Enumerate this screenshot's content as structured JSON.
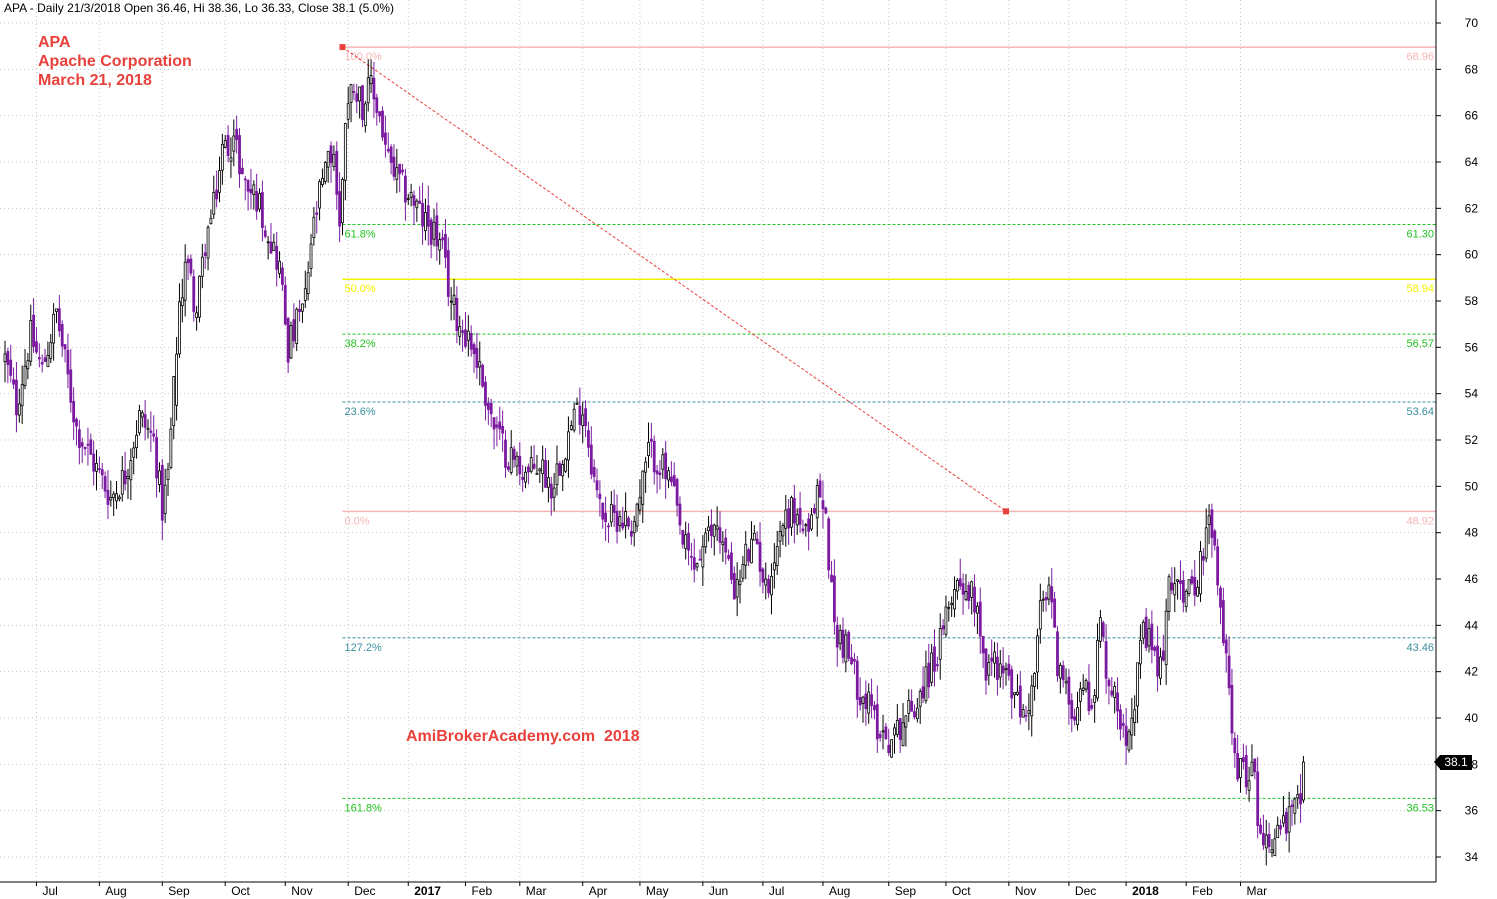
{
  "header": {
    "text": "APA - Daily 21/3/2018 Open 36.46, Hi 38.36, Lo 36.33, Close 38.1 (5.0%)"
  },
  "title_block": {
    "line1": "APA",
    "line2": "Apache Corporation",
    "line3": "March 21, 2018"
  },
  "watermark": "AmiBrokerAcademy.com  2018",
  "last_price_label": "38.1",
  "chart_data": {
    "type": "candlestick",
    "symbol": "APA",
    "interval": "Daily",
    "ylim": [
      33,
      71
    ],
    "y_ticks": [
      34,
      36,
      38,
      40,
      42,
      44,
      46,
      48,
      50,
      52,
      54,
      56,
      58,
      60,
      62,
      64,
      66,
      68,
      70
    ],
    "x_labels": [
      {
        "label": "Jul",
        "bar": 11,
        "bold": false
      },
      {
        "label": "Aug",
        "bar": 33,
        "bold": false
      },
      {
        "label": "Sep",
        "bar": 55,
        "bold": false
      },
      {
        "label": "Oct",
        "bar": 77,
        "bold": false
      },
      {
        "label": "Nov",
        "bar": 98,
        "bold": false
      },
      {
        "label": "Dec",
        "bar": 120,
        "bold": false
      },
      {
        "label": "2017",
        "bar": 141,
        "bold": true
      },
      {
        "label": "Feb",
        "bar": 161,
        "bold": false
      },
      {
        "label": "Mar",
        "bar": 180,
        "bold": false
      },
      {
        "label": "Apr",
        "bar": 202,
        "bold": false
      },
      {
        "label": "May",
        "bar": 222,
        "bold": false
      },
      {
        "label": "Jun",
        "bar": 244,
        "bold": false
      },
      {
        "label": "Jul",
        "bar": 265,
        "bold": false
      },
      {
        "label": "Aug",
        "bar": 286,
        "bold": false
      },
      {
        "label": "Sep",
        "bar": 309,
        "bold": false
      },
      {
        "label": "Oct",
        "bar": 329,
        "bold": false
      },
      {
        "label": "Nov",
        "bar": 351,
        "bold": false
      },
      {
        "label": "Dec",
        "bar": 372,
        "bold": false
      },
      {
        "label": "2018",
        "bar": 392,
        "bold": true
      },
      {
        "label": "Feb",
        "bar": 413,
        "bold": false
      },
      {
        "label": "Mar",
        "bar": 432,
        "bold": false
      }
    ],
    "price_path": [
      [
        0,
        55.5
      ],
      [
        4,
        53.5
      ],
      [
        9,
        56.5
      ],
      [
        13,
        55.0
      ],
      [
        18,
        57.5
      ],
      [
        25,
        52.5
      ],
      [
        31,
        51.0
      ],
      [
        37,
        49.5
      ],
      [
        42,
        50.5
      ],
      [
        47,
        53.0
      ],
      [
        52,
        52.0
      ],
      [
        55,
        49.0
      ],
      [
        57,
        50.5
      ],
      [
        60,
        56.0
      ],
      [
        63,
        60.0
      ],
      [
        67,
        57.5
      ],
      [
        70,
        60.5
      ],
      [
        73,
        62.0
      ],
      [
        76,
        64.5
      ],
      [
        80,
        65.0
      ],
      [
        84,
        63.0
      ],
      [
        88,
        62.5
      ],
      [
        92,
        61.0
      ],
      [
        96,
        59.5
      ],
      [
        99,
        56.0
      ],
      [
        102,
        57.0
      ],
      [
        105,
        58.0
      ],
      [
        107,
        60.5
      ],
      [
        110,
        62.5
      ],
      [
        113,
        64.0
      ],
      [
        115,
        64.5
      ],
      [
        117,
        61.0
      ],
      [
        119,
        66.0
      ],
      [
        122,
        67.5
      ],
      [
        125,
        66.5
      ],
      [
        128,
        67.2
      ],
      [
        131,
        66.0
      ],
      [
        134,
        64.0
      ],
      [
        138,
        63.0
      ],
      [
        142,
        62.5
      ],
      [
        146,
        61.5
      ],
      [
        150,
        61.0
      ],
      [
        153,
        60.0
      ],
      [
        156,
        58.0
      ],
      [
        159,
        57.0
      ],
      [
        162,
        56.5
      ],
      [
        165,
        55.5
      ],
      [
        168,
        54.0
      ],
      [
        171,
        52.5
      ],
      [
        175,
        51.5
      ],
      [
        179,
        51.0
      ],
      [
        183,
        50.5
      ],
      [
        187,
        51.0
      ],
      [
        191,
        50.0
      ],
      [
        195,
        51.5
      ],
      [
        199,
        53.0
      ],
      [
        202,
        53.5
      ],
      [
        204,
        52.0
      ],
      [
        207,
        49.5
      ],
      [
        211,
        48.5
      ],
      [
        215,
        48.8
      ],
      [
        219,
        48.3
      ],
      [
        222,
        49.5
      ],
      [
        225,
        51.5
      ],
      [
        229,
        51.0
      ],
      [
        233,
        50.0
      ],
      [
        237,
        47.5
      ],
      [
        241,
        46.5
      ],
      [
        245,
        47.5
      ],
      [
        249,
        48.5
      ],
      [
        253,
        46.5
      ],
      [
        256,
        45.5
      ],
      [
        259,
        47.0
      ],
      [
        263,
        47.5
      ],
      [
        266,
        45.5
      ],
      [
        269,
        47.0
      ],
      [
        272,
        48.5
      ],
      [
        275,
        49.0
      ],
      [
        278,
        48.5
      ],
      [
        281,
        47.5
      ],
      [
        284,
        50.0
      ],
      [
        287,
        48.5
      ],
      [
        290,
        44.0
      ],
      [
        294,
        43.0
      ],
      [
        298,
        41.5
      ],
      [
        302,
        40.5
      ],
      [
        306,
        39.5
      ],
      [
        310,
        39.0
      ],
      [
        314,
        40.0
      ],
      [
        318,
        40.5
      ],
      [
        321,
        41.5
      ],
      [
        325,
        42.5
      ],
      [
        328,
        43.5
      ],
      [
        331,
        45.5
      ],
      [
        334,
        46.0
      ],
      [
        337,
        45.5
      ],
      [
        340,
        45.0
      ],
      [
        343,
        42.0
      ],
      [
        346,
        42.5
      ],
      [
        349,
        42.0
      ],
      [
        353,
        41.0
      ],
      [
        356,
        40.0
      ],
      [
        359,
        41.0
      ],
      [
        362,
        44.5
      ],
      [
        365,
        45.5
      ],
      [
        368,
        42.5
      ],
      [
        371,
        41.0
      ],
      [
        374,
        40.5
      ],
      [
        377,
        41.5
      ],
      [
        380,
        40.5
      ],
      [
        383,
        44.0
      ],
      [
        386,
        41.5
      ],
      [
        389,
        40.5
      ],
      [
        392,
        39.5
      ],
      [
        395,
        41.0
      ],
      [
        398,
        43.5
      ],
      [
        401,
        43.0
      ],
      [
        404,
        42.0
      ],
      [
        407,
        45.5
      ],
      [
        410,
        46.5
      ],
      [
        413,
        45.0
      ],
      [
        416,
        46.0
      ],
      [
        419,
        47.0
      ],
      [
        421,
        48.5
      ],
      [
        423,
        47.0
      ],
      [
        425,
        44.5
      ],
      [
        427,
        42.5
      ],
      [
        429,
        40.0
      ],
      [
        431,
        38.0
      ],
      [
        433,
        37.5
      ],
      [
        436,
        38.0
      ],
      [
        438,
        36.0
      ],
      [
        440,
        35.0
      ],
      [
        442,
        34.5
      ],
      [
        444,
        35.0
      ],
      [
        446,
        35.5
      ],
      [
        448,
        35.3
      ],
      [
        450,
        35.8
      ],
      [
        452,
        36.2
      ],
      [
        454,
        37.0
      ]
    ],
    "last_bar": {
      "date": "21/3/2018",
      "open": 36.46,
      "high": 38.36,
      "low": 36.33,
      "close": 38.1
    },
    "fibonacci": {
      "trend_start": {
        "bar": 118,
        "price": 68.96
      },
      "trend_end": {
        "bar": 350,
        "price": 48.92
      },
      "levels": [
        {
          "label": "100.0%",
          "value_label": "68.96",
          "value": 68.96,
          "color": "#f5b5b9",
          "style": "solid"
        },
        {
          "label": "61.8%",
          "value_label": "61.30",
          "value": 61.3,
          "color": "#22c322",
          "style": "dashed"
        },
        {
          "label": "50.0%",
          "value_label": "58.94",
          "value": 58.94,
          "color": "#f2f200",
          "style": "solid"
        },
        {
          "label": "38.2%",
          "value_label": "56.57",
          "value": 56.57,
          "color": "#22c322",
          "style": "dashed"
        },
        {
          "label": "23.6%",
          "value_label": "53.64",
          "value": 53.64,
          "color": "#3a8f9e",
          "style": "dashed"
        },
        {
          "label": "0.0%",
          "value_label": "48.92",
          "value": 48.92,
          "color": "#f5b5b9",
          "style": "solid"
        },
        {
          "label": "127.2%",
          "value_label": "43.46",
          "value": 43.46,
          "color": "#3a8f9e",
          "style": "dashed"
        },
        {
          "label": "161.8%",
          "value_label": "36.53",
          "value": 36.53,
          "color": "#22c322",
          "style": "dashed"
        }
      ]
    },
    "colors": {
      "down_candle": "#7b1ba0",
      "up_candle": "#000000",
      "trend_line": "#e8413c",
      "grid": "#c8c8c8",
      "title_text": "#e8413c"
    },
    "grid": true
  }
}
